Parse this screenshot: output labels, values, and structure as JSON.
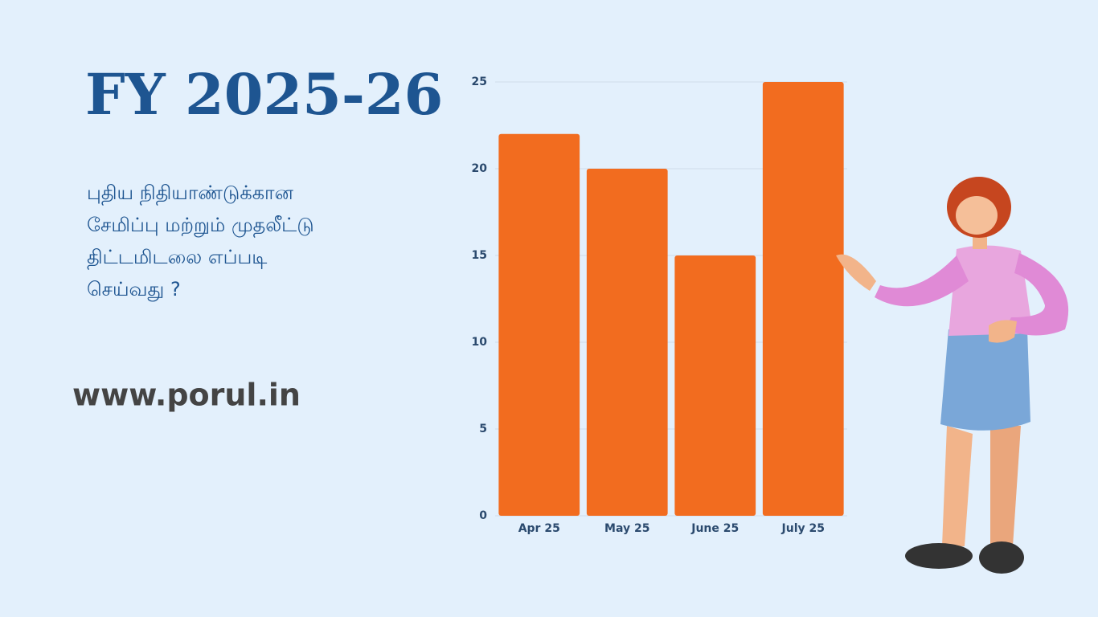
{
  "chart_data": {
    "type": "bar",
    "title": "FY 2025-26",
    "subtitle": [
      "புதிய நிதியாண்டுக்கான",
      "சேமிப்பு மற்றும் முதலீட்டு",
      "திட்டமிடலை எப்படி",
      "செய்வது ?"
    ],
    "website": "www.porul.in",
    "categories": [
      "Apr 25",
      "May 25",
      "June 25",
      "July 25"
    ],
    "values": [
      22,
      20,
      15,
      25
    ],
    "color": "#f26c1f",
    "ylim": [
      0,
      25
    ],
    "yticks": [
      0,
      5,
      10,
      15,
      20,
      25
    ],
    "grid": true
  }
}
